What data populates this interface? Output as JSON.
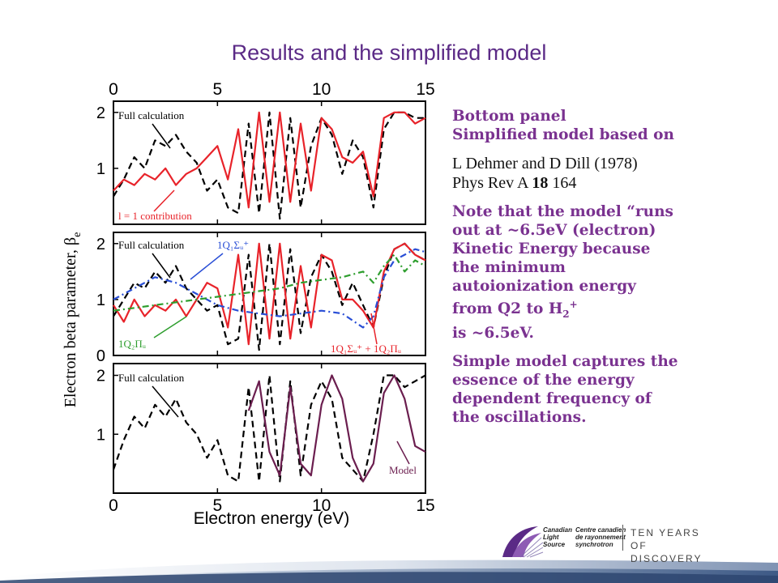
{
  "slide": {
    "title": "Results and the simplified model"
  },
  "notes": {
    "heading1": "Bottom panel",
    "heading2": "Simplified model based on",
    "ref_line1": "L Dehmer and D Dill (1978)",
    "ref_line2_prefix": "Phys Rev A ",
    "ref_line2_volume": "18",
    "ref_line2_suffix": " 164",
    "note_lines": [
      "Note that the model “runs",
      "out at ~6.5eV (electron)",
      "Kinetic Energy because",
      "the minimum",
      "autoionization energy",
      "from Q2 to H"
    ],
    "note_sub": "2",
    "note_sup": "+",
    "note_end": "is ~6.5eV.",
    "summary_lines": [
      "Simple model captures the",
      "essence of the energy",
      "dependent frequency of",
      "the oscillations."
    ]
  },
  "logo": {
    "canadian": "Canadian",
    "light": "Light",
    "source": "Source",
    "centre1": "Centre canadien",
    "centre2": "de rayonnement",
    "centre3": "synchrotron",
    "ten_years": "TEN YEARS",
    "discovery": "OF DISCOVERY"
  },
  "colors": {
    "title": "#5b2a86",
    "notes_heading": "#7a3290",
    "full_calc": "#000000",
    "l1_contribution": "#e8232a",
    "q1_sigma": "#2a4fd6",
    "q2_pi": "#2e9e2e",
    "model": "#6b1e4f"
  },
  "chart_data": {
    "type": "line",
    "xlabel": "Electron energy (eV)",
    "ylabel": "Electron beta parameter, β",
    "ylabel_sub": "e",
    "xlim": [
      0,
      15
    ],
    "x_ticks": [
      "0",
      "5",
      "10",
      "15"
    ],
    "panels": [
      {
        "ylim": [
          0,
          2.2
        ],
        "y_ticks": [
          "1",
          "2"
        ],
        "annotations": [
          "Full calculation",
          "l = 1 contribution"
        ],
        "series": [
          {
            "name": "Full calculation",
            "style": "dashed",
            "color": "#000000",
            "x": [
              0,
              0.5,
              1,
              1.5,
              2,
              2.5,
              3,
              3.5,
              4,
              4.5,
              5,
              5.5,
              6,
              6.5,
              7,
              7.5,
              8,
              8.5,
              9,
              9.5,
              10,
              10.5,
              11,
              11.5,
              12,
              12.5,
              13,
              13.5,
              14,
              14.5,
              15
            ],
            "y": [
              0.5,
              0.8,
              1.2,
              1.0,
              1.5,
              1.4,
              1.6,
              1.3,
              1.1,
              0.6,
              0.8,
              0.3,
              0.2,
              1.8,
              0.2,
              2.0,
              0.1,
              1.9,
              0.3,
              1.4,
              1.9,
              1.6,
              0.9,
              1.5,
              1.2,
              0.3,
              1.7,
              2.0,
              2.0,
              1.9,
              1.9
            ]
          },
          {
            "name": "l = 1 contribution",
            "style": "solid",
            "color": "#e8232a",
            "x": [
              0,
              0.5,
              1,
              1.5,
              2,
              2.5,
              3,
              3.5,
              4,
              4.5,
              5,
              5.5,
              6,
              6.5,
              7,
              7.5,
              8,
              8.5,
              9,
              9.5,
              10,
              10.5,
              11,
              11.5,
              12,
              12.5,
              13,
              13.5,
              14,
              14.5,
              15
            ],
            "y": [
              0.6,
              0.8,
              0.7,
              0.9,
              0.8,
              1.0,
              0.7,
              0.9,
              1.0,
              1.2,
              1.4,
              0.8,
              1.7,
              0.3,
              2.0,
              0.4,
              2.0,
              0.4,
              1.8,
              0.6,
              1.9,
              1.7,
              1.2,
              1.1,
              1.3,
              0.5,
              1.9,
              2.0,
              2.0,
              1.8,
              1.9
            ]
          }
        ]
      },
      {
        "ylim": [
          0,
          2.2
        ],
        "y_ticks": [
          "0",
          "1",
          "2"
        ],
        "annotations": [
          "Full calculation",
          "1Q₁Σᵤ⁺",
          "1Q₂Πᵤ",
          "1Q₁Σᵤ⁺ + 1Q₂Πᵤ"
        ],
        "series": [
          {
            "name": "Full calculation",
            "style": "dashed",
            "color": "#000000",
            "x": [
              0,
              0.5,
              1,
              1.5,
              2,
              2.5,
              3,
              3.5,
              4,
              4.5,
              5,
              5.5,
              6,
              6.5,
              7,
              7.5,
              8,
              8.5,
              9,
              9.5,
              10,
              10.5,
              11,
              11.5,
              12,
              12.5,
              13,
              13.5,
              14,
              14.5,
              15
            ],
            "y": [
              0.7,
              1.0,
              1.3,
              1.2,
              1.5,
              1.3,
              1.6,
              1.2,
              1.0,
              0.8,
              0.9,
              0.2,
              0.3,
              1.8,
              0.1,
              2.0,
              0.2,
              1.9,
              0.4,
              1.4,
              1.8,
              1.5,
              0.9,
              1.3,
              0.9,
              0.5,
              1.4,
              1.9,
              2.0,
              1.8,
              1.7
            ]
          },
          {
            "name": "1Q₁Σᵤ⁺ + 1Q₂Πᵤ",
            "style": "solid",
            "color": "#e8232a",
            "x": [
              0,
              0.5,
              1,
              1.5,
              2,
              2.5,
              3,
              3.5,
              4,
              4.5,
              5,
              5.5,
              6,
              6.5,
              7,
              7.5,
              8,
              8.5,
              9,
              9.5,
              10,
              10.5,
              11,
              11.5,
              12,
              12.5,
              13,
              13.5,
              14,
              14.5,
              15
            ],
            "y": [
              0.9,
              0.6,
              1.0,
              0.7,
              0.9,
              0.8,
              1.0,
              0.7,
              1.0,
              1.3,
              1.2,
              0.5,
              1.8,
              0.2,
              2.0,
              0.3,
              2.0,
              0.3,
              1.6,
              0.5,
              1.8,
              1.7,
              1.0,
              1.0,
              0.8,
              0.5,
              1.5,
              1.9,
              2.0,
              1.8,
              1.7
            ]
          },
          {
            "name": "1Q₁Σᵤ⁺",
            "style": "dashdot",
            "color": "#2a4fd6",
            "x": [
              0,
              1,
              2,
              3,
              4,
              5,
              6,
              7,
              8,
              9,
              10,
              11,
              12,
              12.5,
              13,
              13.5,
              14,
              14.5,
              15
            ],
            "y": [
              1.0,
              1.2,
              1.4,
              1.3,
              1.1,
              0.9,
              0.8,
              0.75,
              0.7,
              0.75,
              0.8,
              0.75,
              0.5,
              0.7,
              1.4,
              1.7,
              1.8,
              1.9,
              1.85
            ]
          },
          {
            "name": "1Q₂Πᵤ",
            "style": "dashdot",
            "color": "#2e9e2e",
            "x": [
              0,
              1,
              2,
              3,
              4,
              5,
              6,
              7,
              8,
              9,
              10,
              11,
              12,
              12.5,
              13,
              13.5,
              14,
              14.5,
              15
            ],
            "y": [
              0.8,
              0.85,
              0.9,
              0.95,
              1.0,
              1.05,
              1.1,
              1.15,
              1.2,
              1.3,
              1.35,
              1.4,
              1.5,
              1.3,
              1.6,
              1.8,
              1.5,
              1.7,
              1.6
            ]
          }
        ]
      },
      {
        "ylim": [
          0,
          2.2
        ],
        "y_ticks": [
          "1",
          "2"
        ],
        "annotations": [
          "Full calculation",
          "Model"
        ],
        "series": [
          {
            "name": "Full calculation",
            "style": "dashed",
            "color": "#000000",
            "x": [
              0,
              0.5,
              1,
              1.5,
              2,
              2.5,
              3,
              3.5,
              4,
              4.5,
              5,
              5.5,
              6,
              6.5,
              7,
              7.5,
              8,
              8.5,
              9,
              9.5,
              10,
              10.5,
              11,
              11.5,
              12,
              12.5,
              13,
              13.5,
              14,
              14.5,
              15
            ],
            "y": [
              0.4,
              0.9,
              1.3,
              1.1,
              1.5,
              1.3,
              1.6,
              1.2,
              1.0,
              0.6,
              0.9,
              0.3,
              0.2,
              1.8,
              0.2,
              2.0,
              0.2,
              1.9,
              0.3,
              1.5,
              1.9,
              1.6,
              0.6,
              0.4,
              0.2,
              1.0,
              2.0,
              2.0,
              1.8,
              1.9,
              2.0
            ]
          },
          {
            "name": "Model",
            "style": "solid",
            "color": "#6b1e4f",
            "x": [
              6.5,
              7,
              7.5,
              8,
              8.5,
              9,
              9.5,
              10,
              10.5,
              11,
              11.5,
              12,
              12.5,
              13,
              13.5,
              14,
              14.5,
              15
            ],
            "y": [
              1.4,
              1.9,
              0.7,
              0.3,
              1.8,
              0.5,
              0.3,
              1.5,
              2.0,
              1.6,
              0.6,
              0.2,
              0.5,
              1.7,
              2.0,
              1.6,
              0.8,
              0.7
            ]
          }
        ]
      }
    ]
  }
}
